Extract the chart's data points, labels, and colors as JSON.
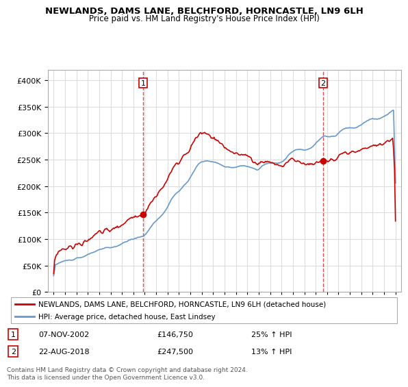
{
  "title": "NEWLANDS, DAMS LANE, BELCHFORD, HORNCASTLE, LN9 6LH",
  "subtitle": "Price paid vs. HM Land Registry's House Price Index (HPI)",
  "legend_line1": "NEWLANDS, DAMS LANE, BELCHFORD, HORNCASTLE, LN9 6LH (detached house)",
  "legend_line2": "HPI: Average price, detached house, East Lindsey",
  "sale1_label": "1",
  "sale1_date": "07-NOV-2002",
  "sale1_price": "£146,750",
  "sale1_hpi": "25% ↑ HPI",
  "sale2_label": "2",
  "sale2_date": "22-AUG-2018",
  "sale2_price": "£247,500",
  "sale2_hpi": "13% ↑ HPI",
  "footer": "Contains HM Land Registry data © Crown copyright and database right 2024.\nThis data is licensed under the Open Government Licence v3.0.",
  "red_color": "#cc0000",
  "blue_color": "#6699cc",
  "sale1_x": 2002.85,
  "sale1_y": 146750,
  "sale2_x": 2018.65,
  "sale2_y": 247500,
  "ylim": [
    0,
    420000
  ],
  "xlim": [
    1994.5,
    2025.5
  ],
  "background_color": "#ffffff",
  "plot_bg_color": "#ffffff",
  "grid_color": "#dddddd"
}
